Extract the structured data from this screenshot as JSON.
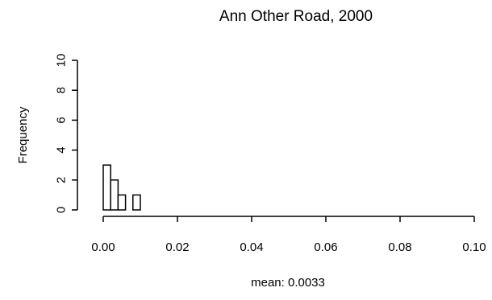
{
  "chart_data": {
    "type": "bar",
    "title": "Ann Other Road, 2000",
    "xlabel": "mean:  0.0033",
    "ylabel": "Frequency",
    "xlim": [
      0,
      0.1
    ],
    "ylim": [
      0,
      10
    ],
    "x_ticks": [
      "0.00",
      "0.02",
      "0.04",
      "0.06",
      "0.08",
      "0.10"
    ],
    "y_ticks": [
      "0",
      "2",
      "4",
      "6",
      "8",
      "10"
    ],
    "bins": [
      {
        "start": 0.0,
        "end": 0.002,
        "count": 3
      },
      {
        "start": 0.002,
        "end": 0.004,
        "count": 2
      },
      {
        "start": 0.004,
        "end": 0.006,
        "count": 1
      },
      {
        "start": 0.006,
        "end": 0.008,
        "count": 0
      },
      {
        "start": 0.008,
        "end": 0.01,
        "count": 1
      }
    ],
    "grid": false,
    "legend": "none"
  }
}
